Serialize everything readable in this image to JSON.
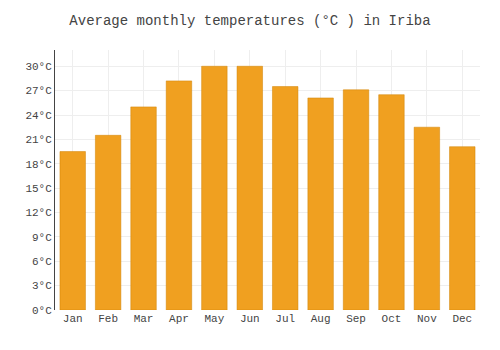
{
  "chart_data": {
    "type": "bar",
    "title": "Average monthly temperatures (°C ) in Iriba",
    "categories": [
      "Jan",
      "Feb",
      "Mar",
      "Apr",
      "May",
      "Jun",
      "Jul",
      "Aug",
      "Sep",
      "Oct",
      "Nov",
      "Dec"
    ],
    "values": [
      19.5,
      21.5,
      25.0,
      28.2,
      30.0,
      30.0,
      27.5,
      26.1,
      27.1,
      26.5,
      22.5,
      20.1
    ],
    "color": "#F0A020",
    "ylim": [
      0,
      32
    ],
    "yticks": [
      {
        "value": 0,
        "label": "0°C"
      },
      {
        "value": 3,
        "label": "3°C"
      },
      {
        "value": 6,
        "label": "6°C"
      },
      {
        "value": 9,
        "label": "9°C"
      },
      {
        "value": 12,
        "label": "12°C"
      },
      {
        "value": 15,
        "label": "15°C"
      },
      {
        "value": 18,
        "label": "18°C"
      },
      {
        "value": 21,
        "label": "21°C"
      },
      {
        "value": 24,
        "label": "24°C"
      },
      {
        "value": 27,
        "label": "27°C"
      },
      {
        "value": 30,
        "label": "30°C"
      }
    ],
    "grid": true
  }
}
